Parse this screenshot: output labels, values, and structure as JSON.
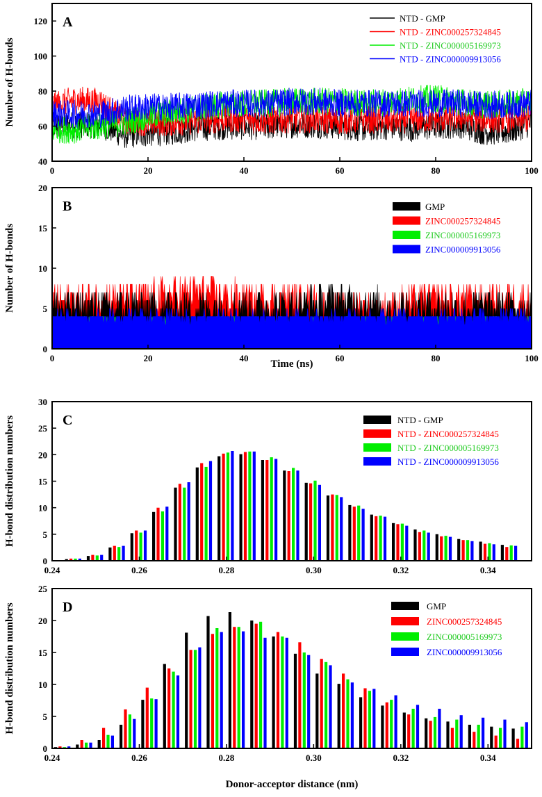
{
  "chart_data": [
    {
      "id": "A",
      "type": "line",
      "panel_label": "A",
      "xlabel": "",
      "ylabel": "Number of H-bonds",
      "xlim": [
        0,
        100
      ],
      "ylim": [
        40,
        130
      ],
      "xticks": [
        0,
        20,
        40,
        60,
        80,
        100
      ],
      "yticks": [
        40,
        60,
        80,
        100,
        120
      ],
      "legend_placement": "top-right",
      "legend_style": "line",
      "series": [
        {
          "name": "NTD - GMP",
          "color": "#000000",
          "x": [
            0,
            5,
            10,
            15,
            20,
            25,
            30,
            35,
            40,
            45,
            50,
            55,
            60,
            65,
            70,
            75,
            80,
            85,
            90,
            95,
            100
          ],
          "values": [
            60,
            61,
            61,
            55,
            56,
            57,
            59,
            60,
            60,
            60,
            61,
            61,
            60,
            59,
            60,
            59,
            60,
            61,
            57,
            57,
            62
          ]
        },
        {
          "name": "NTD - ZINC000257324845",
          "color": "#ff0000",
          "x": [
            0,
            5,
            10,
            15,
            20,
            25,
            30,
            35,
            40,
            45,
            50,
            55,
            60,
            65,
            70,
            75,
            80,
            85,
            90,
            95,
            100
          ],
          "values": [
            72,
            75,
            74,
            63,
            62,
            62,
            63,
            64,
            64,
            63,
            64,
            64,
            63,
            64,
            63,
            64,
            64,
            65,
            64,
            64,
            64
          ]
        },
        {
          "name": "NTD - ZINC000005169973",
          "color": "#00ee00",
          "x": [
            0,
            5,
            10,
            15,
            20,
            25,
            30,
            35,
            40,
            45,
            50,
            55,
            60,
            65,
            70,
            75,
            80,
            85,
            90,
            95,
            100
          ],
          "values": [
            58,
            58,
            60,
            62,
            66,
            68,
            70,
            72,
            73,
            73,
            74,
            74,
            74,
            73,
            74,
            75,
            76,
            74,
            72,
            73,
            74
          ]
        },
        {
          "name": "NTD - ZINC000009913056",
          "color": "#0000ff",
          "x": [
            0,
            5,
            10,
            15,
            20,
            25,
            30,
            35,
            40,
            45,
            50,
            55,
            60,
            65,
            70,
            75,
            80,
            85,
            90,
            95,
            100
          ],
          "values": [
            67,
            67,
            67,
            70,
            71,
            71,
            72,
            73,
            73,
            73,
            74,
            74,
            73,
            73,
            73,
            73,
            73,
            73,
            72,
            72,
            73
          ]
        }
      ]
    },
    {
      "id": "B",
      "type": "area",
      "panel_label": "B",
      "xlabel": "Time (ns)",
      "ylabel": "Number of H-bonds",
      "xlim": [
        0,
        100
      ],
      "ylim": [
        0,
        20
      ],
      "xticks": [
        0,
        20,
        40,
        60,
        80,
        100
      ],
      "yticks": [
        0,
        5,
        10,
        15,
        20
      ],
      "legend_placement": "top-right",
      "legend_style": "box",
      "series": [
        {
          "name": "GMP",
          "color": "#000000",
          "x": [
            0,
            10,
            20,
            30,
            40,
            50,
            60,
            70,
            80,
            90,
            100
          ],
          "values": [
            5,
            5,
            5,
            5,
            5,
            5,
            6,
            5,
            5,
            5,
            5
          ]
        },
        {
          "name": "ZINC000257324845",
          "color": "#ff0000",
          "x": [
            0,
            10,
            20,
            30,
            40,
            50,
            60,
            70,
            80,
            90,
            100
          ],
          "values": [
            6,
            6,
            6,
            7,
            6,
            6,
            5,
            5,
            6,
            6,
            6
          ]
        },
        {
          "name": "ZINC000005169973",
          "color": "#00ee00",
          "x": [
            0,
            10,
            20,
            30,
            40,
            50,
            60,
            70,
            80,
            90,
            100
          ],
          "values": [
            3,
            3,
            3,
            3,
            3,
            3,
            3,
            3,
            3,
            3,
            3
          ]
        },
        {
          "name": "ZINC000009913056",
          "color": "#0000ff",
          "x": [
            0,
            10,
            20,
            30,
            40,
            50,
            60,
            70,
            80,
            90,
            100
          ],
          "values": [
            4,
            4,
            4,
            4,
            4,
            4,
            4,
            4,
            4,
            4,
            4
          ]
        }
      ]
    },
    {
      "id": "C",
      "type": "bar",
      "panel_label": "C",
      "xlabel": "",
      "ylabel": "H-bond distribution numbers",
      "xlim": [
        0.24,
        0.35
      ],
      "ylim": [
        0,
        30
      ],
      "xticks": [
        0.24,
        0.26,
        0.28,
        0.3,
        0.32,
        0.34
      ],
      "yticks": [
        0,
        5,
        10,
        15,
        20,
        25,
        30
      ],
      "legend_placement": "top-right",
      "legend_style": "box",
      "categories": [
        0.245,
        0.25,
        0.255,
        0.26,
        0.265,
        0.27,
        0.275,
        0.28,
        0.285,
        0.29,
        0.295,
        0.3,
        0.305,
        0.31,
        0.315,
        0.32,
        0.325,
        0.33,
        0.335,
        0.34,
        0.345
      ],
      "series": [
        {
          "name": "NTD - GMP",
          "color": "#000000",
          "values": [
            0.3,
            0.9,
            2.5,
            5.2,
            9.2,
            13.8,
            17.6,
            19.7,
            20.1,
            19.0,
            17.0,
            14.7,
            12.3,
            10.5,
            8.7,
            7.1,
            5.9,
            5.0,
            4.1,
            3.6,
            3.0
          ]
        },
        {
          "name": "NTD - ZINC000257324845",
          "color": "#ff0000",
          "values": [
            0.4,
            1.1,
            2.8,
            5.7,
            10.0,
            14.5,
            18.4,
            20.2,
            20.5,
            19.0,
            16.9,
            14.6,
            12.5,
            10.2,
            8.4,
            6.9,
            5.4,
            4.6,
            3.9,
            3.2,
            2.6
          ]
        },
        {
          "name": "NTD - ZINC000005169973",
          "color": "#00ee00",
          "values": [
            0.4,
            1.0,
            2.6,
            5.3,
            9.3,
            13.8,
            17.7,
            20.4,
            20.6,
            19.5,
            17.5,
            15.1,
            12.4,
            10.4,
            8.5,
            7.0,
            5.7,
            4.7,
            3.9,
            3.3,
            2.9
          ]
        },
        {
          "name": "NTD - ZINC000009913056",
          "color": "#0000ff",
          "values": [
            0.4,
            1.1,
            2.8,
            5.7,
            10.2,
            14.8,
            18.8,
            20.7,
            20.6,
            19.2,
            17.0,
            14.3,
            12.0,
            9.8,
            8.3,
            6.6,
            5.3,
            4.5,
            3.7,
            3.1,
            2.8
          ]
        }
      ]
    },
    {
      "id": "D",
      "type": "bar",
      "panel_label": "D",
      "xlabel": "Donor-acceptor distance (nm)",
      "ylabel": "H-bond distribution numbers",
      "xlim": [
        0.24,
        0.35
      ],
      "ylim": [
        0,
        25
      ],
      "xticks": [
        0.24,
        0.26,
        0.28,
        0.3,
        0.32,
        0.34
      ],
      "yticks": [
        0,
        5,
        10,
        15,
        20,
        25
      ],
      "legend_placement": "top-right",
      "legend_style": "box",
      "categories": [
        0.2425,
        0.2475,
        0.2525,
        0.2575,
        0.2625,
        0.2675,
        0.2725,
        0.2775,
        0.2825,
        0.2875,
        0.2925,
        0.2975,
        0.3025,
        0.3075,
        0.3125,
        0.3175,
        0.3225,
        0.3275,
        0.3325,
        0.3375,
        0.3425,
        0.3475
      ],
      "series": [
        {
          "name": "GMP",
          "color": "#000000",
          "values": [
            0.2,
            0.6,
            1.3,
            3.7,
            7.6,
            13.2,
            18.1,
            20.7,
            21.3,
            20.0,
            17.5,
            14.8,
            11.7,
            10.1,
            8.0,
            6.7,
            5.6,
            4.7,
            4.2,
            3.7,
            3.4,
            3.1
          ]
        },
        {
          "name": "ZINC000257324845",
          "color": "#ff0000",
          "values": [
            0.3,
            1.3,
            3.2,
            6.1,
            9.5,
            12.5,
            15.4,
            17.9,
            19.0,
            19.5,
            18.2,
            16.6,
            14.0,
            11.7,
            9.4,
            7.2,
            5.3,
            4.3,
            3.2,
            2.6,
            2.0,
            1.5
          ]
        },
        {
          "name": "ZINC000005169973",
          "color": "#00ee00",
          "values": [
            0.2,
            0.9,
            2.1,
            5.3,
            7.8,
            12.0,
            15.4,
            18.8,
            19.0,
            19.8,
            17.5,
            15.0,
            13.5,
            10.8,
            9.0,
            7.6,
            6.2,
            4.9,
            4.5,
            3.7,
            3.2,
            3.4
          ]
        },
        {
          "name": "ZINC000009913056",
          "color": "#0000ff",
          "values": [
            0.3,
            0.9,
            2.0,
            4.6,
            7.7,
            11.4,
            15.8,
            18.2,
            18.3,
            17.3,
            17.3,
            14.6,
            13.0,
            10.3,
            9.3,
            8.3,
            6.8,
            6.2,
            5.2,
            4.8,
            4.5,
            4.1
          ]
        }
      ]
    }
  ]
}
